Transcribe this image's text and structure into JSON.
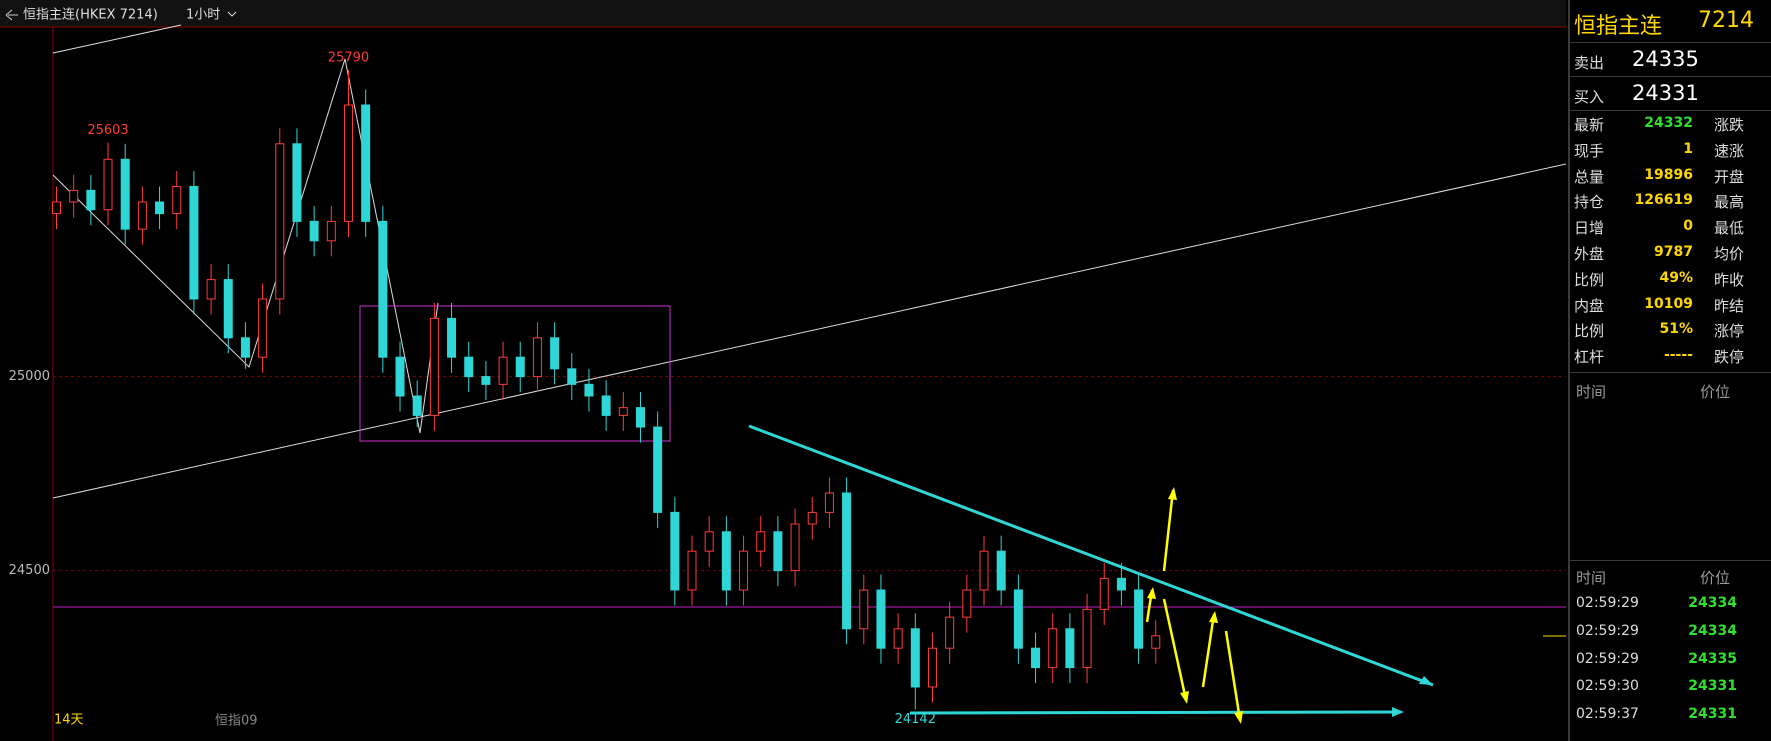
{
  "header": {
    "title": "恒指主连(HKEX 7214)",
    "period": "1小时"
  },
  "chart_data": {
    "type": "candlestick",
    "open": [
      25420,
      25450,
      25480,
      25430,
      25560,
      25380,
      25450,
      25420,
      25490,
      25200,
      25250,
      25100,
      25050,
      25200,
      25600,
      25400,
      25350,
      25400,
      25700,
      25400,
      25050,
      24950,
      24900,
      25150,
      25050,
      25000,
      24980,
      25050,
      25000,
      25100,
      25020,
      24980,
      24950,
      24900,
      24920,
      24870,
      24650,
      24450,
      24550,
      24600,
      24450,
      24550,
      24600,
      24500,
      24620,
      24650,
      24700,
      24350,
      24450,
      24300,
      24350,
      24200,
      24300,
      24380,
      24450,
      24550,
      24450,
      24300,
      24250,
      24350,
      24250,
      24400,
      24480,
      24450,
      24300
    ],
    "high": [
      25490,
      25520,
      25520,
      25603,
      25600,
      25490,
      25490,
      25530,
      25530,
      25290,
      25290,
      25140,
      25240,
      25640,
      25640,
      25440,
      25440,
      25790,
      25740,
      25440,
      25090,
      24990,
      25190,
      25190,
      25090,
      25040,
      25090,
      25090,
      25140,
      25140,
      25060,
      25020,
      24990,
      24960,
      24960,
      24910,
      24690,
      24590,
      24640,
      24640,
      24590,
      24640,
      24640,
      24660,
      24690,
      24740,
      24740,
      24490,
      24490,
      24390,
      24390,
      24340,
      24420,
      24490,
      24590,
      24590,
      24490,
      24340,
      24390,
      24390,
      24440,
      24520,
      24520,
      24490,
      24372
    ],
    "low": [
      25380,
      25410,
      25390,
      25390,
      25340,
      25340,
      25380,
      25380,
      25160,
      25160,
      25060,
      25020,
      25010,
      25160,
      25360,
      25310,
      25310,
      25360,
      25360,
      25010,
      24910,
      24870,
      24860,
      25010,
      24960,
      24940,
      24940,
      24960,
      24960,
      24980,
      24940,
      24910,
      24860,
      24860,
      24830,
      24610,
      24410,
      24410,
      24510,
      24410,
      24410,
      24510,
      24460,
      24460,
      24580,
      24610,
      24310,
      24310,
      24260,
      24260,
      24142,
      24160,
      24260,
      24340,
      24410,
      24410,
      24260,
      24210,
      24210,
      24210,
      24210,
      24360,
      24410,
      24260,
      24260
    ],
    "close": [
      25450,
      25480,
      25430,
      25560,
      25380,
      25450,
      25420,
      25490,
      25200,
      25250,
      25100,
      25050,
      25200,
      25600,
      25400,
      25350,
      25400,
      25700,
      25400,
      25050,
      24950,
      24900,
      25150,
      25050,
      25000,
      24980,
      25050,
      25000,
      25100,
      25020,
      24980,
      24950,
      24900,
      24920,
      24870,
      24650,
      24450,
      24550,
      24600,
      24450,
      24550,
      24600,
      24500,
      24620,
      24650,
      24700,
      24350,
      24450,
      24300,
      24350,
      24200,
      24300,
      24380,
      24450,
      24550,
      24450,
      24300,
      24250,
      24350,
      24250,
      24400,
      24480,
      24450,
      24300,
      24332
    ],
    "up_color": "#ff3b3b",
    "down_color": "#2fd6d6",
    "ylim": [
      24084,
      25901
    ],
    "yticks": [
      24500,
      25000
    ],
    "grid": true,
    "high_labels": [
      25603,
      25790
    ],
    "low_labels": [
      24142
    ],
    "period_label": "14天",
    "contract_label": "恒指09"
  },
  "panel": {
    "name": "恒指主连",
    "code": "7214",
    "ask": {
      "label": "卖出",
      "value": 24335
    },
    "bid": {
      "label": "买入",
      "value": 24331
    },
    "rows": [
      [
        "最新",
        24332,
        "涨跌"
      ],
      [
        "现手",
        1,
        "速涨"
      ],
      [
        "总量",
        19896,
        "开盘"
      ],
      [
        "持仓",
        126619,
        "最高"
      ],
      [
        "日增",
        0,
        "最低"
      ],
      [
        "外盘",
        9787,
        "均价"
      ],
      [
        "比例",
        "49%",
        "昨收"
      ],
      [
        "内盘",
        10109,
        "昨结"
      ],
      [
        "比例",
        "51%",
        "涨停"
      ],
      [
        "杠杆",
        "-----",
        "跌停"
      ]
    ],
    "tick_header": [
      "时间",
      "价位"
    ],
    "trade_header": [
      "时间",
      "价位"
    ],
    "trades": [
      [
        "02:59:29",
        24334
      ],
      [
        "02:59:29",
        24334
      ],
      [
        "02:59:29",
        24335
      ],
      [
        "02:59:30",
        24331
      ],
      [
        "02:59:37",
        24331
      ]
    ]
  }
}
